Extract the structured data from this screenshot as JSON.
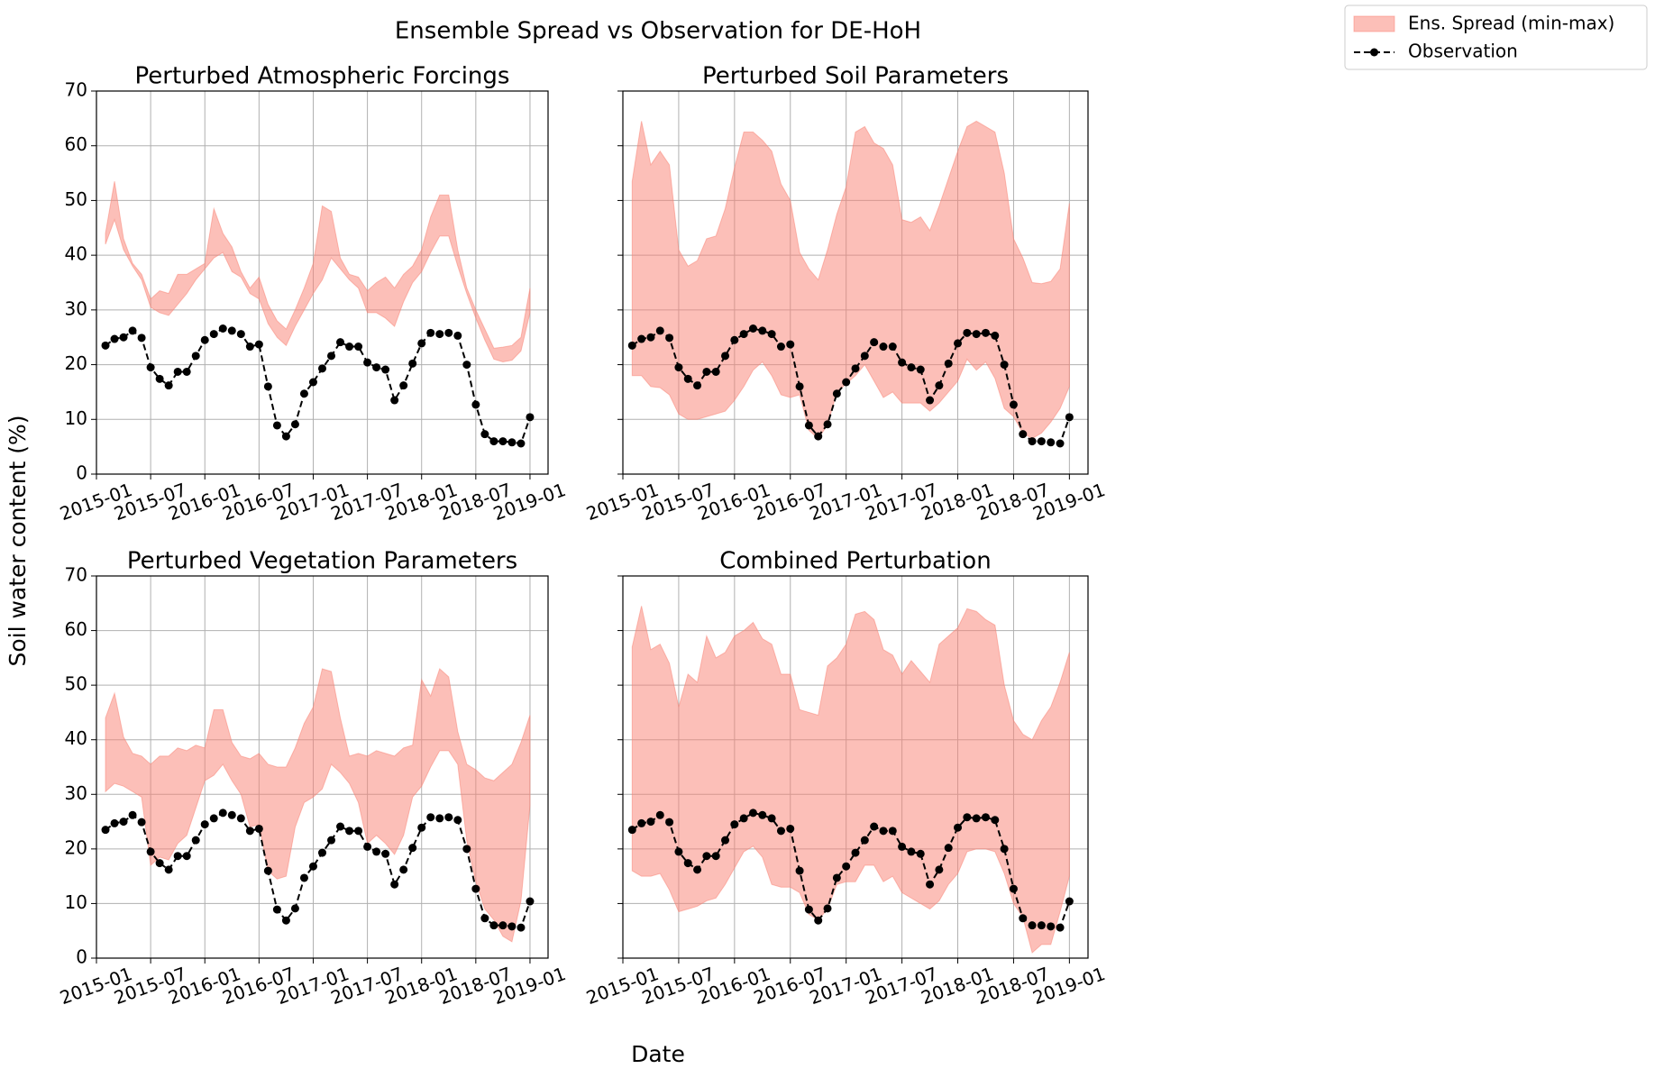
{
  "figure": {
    "title": "Ensemble Spread vs Observation for DE-HoH",
    "xlabel": "Date",
    "ylabel": "Soil water content (%)",
    "legend": {
      "position": "upper right",
      "entries": [
        "Ens. Spread (min-max)",
        "Observation"
      ]
    }
  },
  "chart_data": [
    {
      "type": "band",
      "title": "Perturbed Atmospheric Forcings",
      "x": [
        "2015-02",
        "2015-03",
        "2015-04",
        "2015-05",
        "2015-06",
        "2015-07",
        "2015-08",
        "2015-09",
        "2015-10",
        "2015-11",
        "2015-12",
        "2016-01",
        "2016-02",
        "2016-03",
        "2016-04",
        "2016-05",
        "2016-06",
        "2016-07",
        "2016-08",
        "2016-09",
        "2016-10",
        "2016-11",
        "2016-12",
        "2017-01",
        "2017-02",
        "2017-03",
        "2017-04",
        "2017-05",
        "2017-06",
        "2017-07",
        "2017-08",
        "2017-09",
        "2017-10",
        "2017-11",
        "2017-12",
        "2018-01",
        "2018-02",
        "2018-03",
        "2018-04",
        "2018-05",
        "2018-06",
        "2018-07",
        "2018-08",
        "2018-09",
        "2018-10",
        "2018-11",
        "2018-12",
        "2019-01"
      ],
      "series": [
        {
          "color": "#fa8072",
          "alpha": 0.5,
          "lower": [
            42,
            46.5,
            41,
            38,
            35.5,
            30.5,
            29.5,
            29,
            31,
            33,
            35.5,
            37.5,
            39.5,
            40.5,
            37,
            36,
            33,
            32,
            27.5,
            25,
            23.5,
            27,
            30,
            33,
            35.5,
            39.5,
            37.5,
            35.5,
            34,
            29.5,
            29.5,
            28.5,
            27,
            31.5,
            35,
            37,
            40.5,
            43.5,
            43.5,
            38,
            33,
            28.5,
            24.5,
            21,
            20.5,
            20.8,
            22.5,
            29.5
          ],
          "upper": [
            44,
            53.5,
            43,
            38.5,
            36.5,
            32,
            33.5,
            33,
            36.5,
            36.5,
            37.5,
            38.5,
            48.5,
            44,
            41.5,
            37,
            34,
            36,
            31,
            28,
            26.5,
            30,
            34,
            38.5,
            49,
            48,
            39.5,
            36.5,
            36,
            33.5,
            35,
            36,
            34,
            36.5,
            38,
            41,
            47,
            51,
            51,
            41,
            34,
            30,
            26.5,
            23,
            23.2,
            23.5,
            25,
            34
          ]
        },
        {
          "color": "#000000",
          "values": [
            23.5,
            24.7,
            25,
            26.2,
            24.9,
            19.5,
            17.4,
            16.2,
            18.7,
            18.7,
            21.6,
            24.5,
            25.6,
            26.6,
            26.2,
            25.6,
            23.3,
            23.7,
            16,
            8.9,
            6.9,
            9.1,
            14.7,
            16.8,
            19.3,
            21.6,
            24.1,
            23.3,
            23.3,
            20.4,
            19.5,
            19.1,
            13.5,
            16.2,
            20.2,
            23.9,
            25.8,
            25.6,
            25.8,
            25.3,
            20,
            12.7,
            7.3,
            6,
            6,
            5.8,
            5.6,
            10.4
          ]
        }
      ],
      "xlim": [
        "2015-01",
        "2019-03"
      ],
      "xticks": [
        "2015-01",
        "2015-07",
        "2016-01",
        "2016-07",
        "2017-01",
        "2017-07",
        "2018-01",
        "2018-07",
        "2019-01"
      ],
      "ylim": [
        0,
        70
      ],
      "yticks": [
        0,
        10,
        20,
        30,
        40,
        50,
        60,
        70
      ],
      "ytick_labels": true,
      "grid": true
    },
    {
      "type": "band",
      "title": "Perturbed Soil Parameters",
      "x": [
        "2015-02",
        "2015-03",
        "2015-04",
        "2015-05",
        "2015-06",
        "2015-07",
        "2015-08",
        "2015-09",
        "2015-10",
        "2015-11",
        "2015-12",
        "2016-01",
        "2016-02",
        "2016-03",
        "2016-04",
        "2016-05",
        "2016-06",
        "2016-07",
        "2016-08",
        "2016-09",
        "2016-10",
        "2016-11",
        "2016-12",
        "2017-01",
        "2017-02",
        "2017-03",
        "2017-04",
        "2017-05",
        "2017-06",
        "2017-07",
        "2017-08",
        "2017-09",
        "2017-10",
        "2017-11",
        "2017-12",
        "2018-01",
        "2018-02",
        "2018-03",
        "2018-04",
        "2018-05",
        "2018-06",
        "2018-07",
        "2018-08",
        "2018-09",
        "2018-10",
        "2018-11",
        "2018-12",
        "2019-01"
      ],
      "series": [
        {
          "color": "#fa8072",
          "alpha": 0.5,
          "lower": [
            18,
            18,
            16,
            15.8,
            14.5,
            11,
            10,
            10,
            10.5,
            11,
            11.5,
            13.5,
            16,
            19,
            20.5,
            18,
            14.5,
            14,
            14.5,
            8,
            6.5,
            9,
            15,
            16.5,
            18,
            20,
            17,
            14,
            15,
            13,
            13,
            13,
            11.5,
            13,
            15,
            17,
            21,
            19,
            20.5,
            17.5,
            12,
            10.5,
            7.5,
            6.5,
            7.5,
            9.5,
            12,
            16
          ],
          "upper": [
            53.5,
            64.5,
            56.5,
            59,
            56.5,
            41,
            38,
            39,
            43,
            43.5,
            48.5,
            56,
            62.5,
            62.5,
            61,
            59,
            53,
            50,
            40.5,
            37.5,
            35.5,
            41,
            47.5,
            52.5,
            62.5,
            63.5,
            60.5,
            59.5,
            56.5,
            46.5,
            46,
            47,
            44.5,
            49,
            54,
            59,
            63.5,
            64.5,
            63.5,
            62.5,
            55,
            43,
            39.5,
            35,
            34.8,
            35.2,
            37.5,
            49.5
          ]
        },
        {
          "color": "#000000",
          "values": [
            23.5,
            24.7,
            25,
            26.2,
            24.9,
            19.5,
            17.4,
            16.2,
            18.7,
            18.7,
            21.6,
            24.5,
            25.6,
            26.6,
            26.2,
            25.6,
            23.3,
            23.7,
            16,
            8.9,
            6.9,
            9.1,
            14.7,
            16.8,
            19.3,
            21.6,
            24.1,
            23.3,
            23.3,
            20.4,
            19.5,
            19.1,
            13.5,
            16.2,
            20.2,
            23.9,
            25.8,
            25.6,
            25.8,
            25.3,
            20,
            12.7,
            7.3,
            6,
            6,
            5.8,
            5.6,
            10.4
          ]
        }
      ],
      "xlim": [
        "2015-01",
        "2019-03"
      ],
      "xticks": [
        "2015-01",
        "2015-07",
        "2016-01",
        "2016-07",
        "2017-01",
        "2017-07",
        "2018-01",
        "2018-07",
        "2019-01"
      ],
      "ylim": [
        0,
        70
      ],
      "yticks": [
        0,
        10,
        20,
        30,
        40,
        50,
        60,
        70
      ],
      "ytick_labels": false,
      "grid": true
    },
    {
      "type": "band",
      "title": "Perturbed Vegetation Parameters",
      "x": [
        "2015-02",
        "2015-03",
        "2015-04",
        "2015-05",
        "2015-06",
        "2015-07",
        "2015-08",
        "2015-09",
        "2015-10",
        "2015-11",
        "2015-12",
        "2016-01",
        "2016-02",
        "2016-03",
        "2016-04",
        "2016-05",
        "2016-06",
        "2016-07",
        "2016-08",
        "2016-09",
        "2016-10",
        "2016-11",
        "2016-12",
        "2017-01",
        "2017-02",
        "2017-03",
        "2017-04",
        "2017-05",
        "2017-06",
        "2017-07",
        "2017-08",
        "2017-09",
        "2017-10",
        "2017-11",
        "2017-12",
        "2018-01",
        "2018-02",
        "2018-03",
        "2018-04",
        "2018-05",
        "2018-06",
        "2018-07",
        "2018-08",
        "2018-09",
        "2018-10",
        "2018-11",
        "2018-12",
        "2019-01"
      ],
      "series": [
        {
          "color": "#fa8072",
          "alpha": 0.5,
          "lower": [
            30.5,
            32,
            31.5,
            30.5,
            29.5,
            17,
            18.5,
            18,
            21,
            22.5,
            27.5,
            32.5,
            33.5,
            35.5,
            32.5,
            30,
            24,
            24.5,
            16,
            14.5,
            15,
            24,
            28.5,
            29.5,
            31,
            35.5,
            34,
            32,
            28.5,
            21,
            22.5,
            21,
            19,
            22.5,
            29.5,
            31.5,
            35,
            38,
            38,
            35.5,
            21.5,
            14,
            9,
            7,
            4,
            3,
            10.5,
            28
          ],
          "upper": [
            44,
            48.5,
            40.5,
            37.5,
            37,
            35.5,
            37,
            37,
            38.5,
            38,
            39,
            38.5,
            45.5,
            45.5,
            39.5,
            37,
            36.5,
            37.5,
            35.5,
            35,
            35,
            38.5,
            43,
            46,
            53,
            52.5,
            44,
            37,
            37.5,
            37,
            38,
            37.5,
            37,
            38.5,
            39,
            51,
            48,
            53,
            51.5,
            41.5,
            35.5,
            34.5,
            33,
            32.5,
            34,
            35.5,
            39.5,
            44.5
          ]
        },
        {
          "color": "#000000",
          "values": [
            23.5,
            24.7,
            25,
            26.2,
            24.9,
            19.5,
            17.4,
            16.2,
            18.7,
            18.7,
            21.6,
            24.5,
            25.6,
            26.6,
            26.2,
            25.6,
            23.3,
            23.7,
            16,
            8.9,
            6.9,
            9.1,
            14.7,
            16.8,
            19.3,
            21.6,
            24.1,
            23.3,
            23.3,
            20.4,
            19.5,
            19.1,
            13.5,
            16.2,
            20.2,
            23.9,
            25.8,
            25.6,
            25.8,
            25.3,
            20,
            12.7,
            7.3,
            6,
            6,
            5.8,
            5.6,
            10.4
          ]
        }
      ],
      "xlim": [
        "2015-01",
        "2019-03"
      ],
      "xticks": [
        "2015-01",
        "2015-07",
        "2016-01",
        "2016-07",
        "2017-01",
        "2017-07",
        "2018-01",
        "2018-07",
        "2019-01"
      ],
      "ylim": [
        0,
        70
      ],
      "yticks": [
        0,
        10,
        20,
        30,
        40,
        50,
        60,
        70
      ],
      "ytick_labels": true,
      "grid": true
    },
    {
      "type": "band",
      "title": "Combined Perturbation",
      "x": [
        "2015-02",
        "2015-03",
        "2015-04",
        "2015-05",
        "2015-06",
        "2015-07",
        "2015-08",
        "2015-09",
        "2015-10",
        "2015-11",
        "2015-12",
        "2016-01",
        "2016-02",
        "2016-03",
        "2016-04",
        "2016-05",
        "2016-06",
        "2016-07",
        "2016-08",
        "2016-09",
        "2016-10",
        "2016-11",
        "2016-12",
        "2017-01",
        "2017-02",
        "2017-03",
        "2017-04",
        "2017-05",
        "2017-06",
        "2017-07",
        "2017-08",
        "2017-09",
        "2017-10",
        "2017-11",
        "2017-12",
        "2018-01",
        "2018-02",
        "2018-03",
        "2018-04",
        "2018-05",
        "2018-06",
        "2018-07",
        "2018-08",
        "2018-09",
        "2018-10",
        "2018-11",
        "2018-12",
        "2019-01"
      ],
      "series": [
        {
          "color": "#fa8072",
          "alpha": 0.5,
          "lower": [
            16,
            15,
            15,
            15.5,
            12.5,
            8.5,
            9,
            9.5,
            10.5,
            11,
            13.5,
            16.5,
            19.5,
            20.5,
            18.5,
            13.5,
            13,
            13,
            12,
            8,
            7,
            9,
            13.5,
            14,
            14,
            17,
            17,
            14,
            15,
            12,
            11,
            10,
            9,
            10.5,
            13.5,
            15.5,
            19.5,
            20,
            20,
            19.5,
            15.5,
            10,
            7.5,
            1,
            2.5,
            2.5,
            8.5,
            15
          ],
          "upper": [
            57,
            64.5,
            56.5,
            57.5,
            54,
            46,
            52,
            50.5,
            59,
            55,
            56,
            59,
            60,
            61.5,
            58.5,
            57.5,
            52,
            52,
            45.5,
            45,
            44.5,
            53.5,
            55,
            57.5,
            63,
            63.5,
            62,
            56.5,
            55.5,
            52,
            54.5,
            52.5,
            50.5,
            57.5,
            59,
            60.5,
            64,
            63.5,
            62,
            61,
            50,
            43.5,
            41,
            40,
            43.5,
            46,
            50.5,
            56
          ]
        },
        {
          "color": "#000000",
          "values": [
            23.5,
            24.7,
            25,
            26.2,
            24.9,
            19.5,
            17.4,
            16.2,
            18.7,
            18.7,
            21.6,
            24.5,
            25.6,
            26.6,
            26.2,
            25.6,
            23.3,
            23.7,
            16,
            8.9,
            6.9,
            9.1,
            14.7,
            16.8,
            19.3,
            21.6,
            24.1,
            23.3,
            23.3,
            20.4,
            19.5,
            19.1,
            13.5,
            16.2,
            20.2,
            23.9,
            25.8,
            25.6,
            25.8,
            25.3,
            20,
            12.7,
            7.3,
            6,
            6,
            5.8,
            5.6,
            10.4
          ]
        }
      ],
      "xlim": [
        "2015-01",
        "2019-03"
      ],
      "xticks": [
        "2015-01",
        "2015-07",
        "2016-01",
        "2016-07",
        "2017-01",
        "2017-07",
        "2018-01",
        "2018-07",
        "2019-01"
      ],
      "ylim": [
        0,
        70
      ],
      "yticks": [
        0,
        10,
        20,
        30,
        40,
        50,
        60,
        70
      ],
      "ytick_labels": false,
      "grid": true
    }
  ]
}
